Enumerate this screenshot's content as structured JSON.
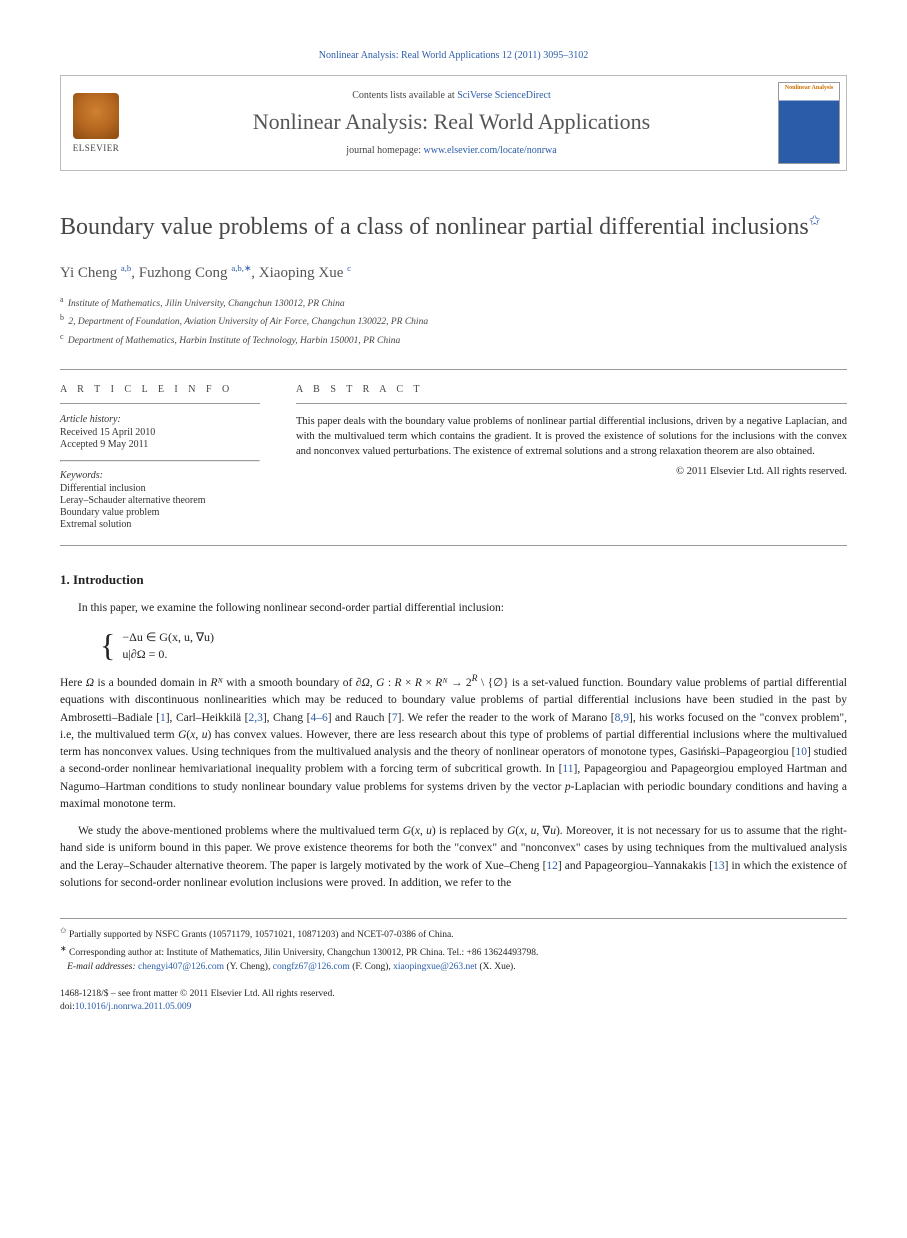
{
  "citation": "Nonlinear Analysis: Real World Applications 12 (2011) 3095–3102",
  "header": {
    "contents_prefix": "Contents lists available at ",
    "contents_link": "SciVerse ScienceDirect",
    "journal_title": "Nonlinear Analysis: Real World Applications",
    "homepage_prefix": "journal homepage: ",
    "homepage_link": "www.elsevier.com/locate/nonrwa",
    "elsevier_label": "ELSEVIER",
    "cover_title": "Nonlinear Analysis"
  },
  "article": {
    "title": "Boundary value problems of a class of nonlinear partial differential inclusions",
    "title_marker": "✩",
    "authors": [
      {
        "name": "Yi Cheng",
        "aff": "a,b"
      },
      {
        "name": "Fuzhong Cong",
        "aff": "a,b,",
        "corr": "∗"
      },
      {
        "name": "Xiaoping Xue",
        "aff": "c"
      }
    ],
    "affiliations": [
      {
        "sup": "a",
        "text": "Institute of Mathematics, Jilin University, Changchun 130012, PR China"
      },
      {
        "sup": "b",
        "text": "2, Department of Foundation, Aviation University of Air Force, Changchun 130022, PR China"
      },
      {
        "sup": "c",
        "text": "Department of Mathematics, Harbin Institute of Technology, Harbin 150001, PR China"
      }
    ]
  },
  "info": {
    "heading": "A R T I C L E   I N F O",
    "history_h": "Article history:",
    "received": "Received 15 April 2010",
    "accepted": "Accepted 9 May 2011",
    "keywords_h": "Keywords:",
    "keywords": [
      "Differential inclusion",
      "Leray–Schauder alternative theorem",
      "Boundary value problem",
      "Extremal solution"
    ]
  },
  "abstract": {
    "heading": "A B S T R A C T",
    "text": "This paper deals with the boundary value problems of nonlinear partial differential inclusions, driven by a negative Laplacian, and with the multivalued term which contains the gradient. It is proved the existence of solutions for the inclusions with the convex and nonconvex valued perturbations. The existence of extremal solutions and a strong relaxation theorem are also obtained.",
    "copyright": "© 2011 Elsevier Ltd. All rights reserved."
  },
  "section1": {
    "heading": "1. Introduction",
    "intro_line": "In this paper, we examine the following nonlinear second-order partial differential inclusion:",
    "eq_line1": "−Δu ∈ G(x, u, ∇u)",
    "eq_line2": "u|∂Ω = 0.",
    "para1": "Here Ω is a bounded domain in Rᴺ with a smooth boundary of ∂Ω, G : R × R × Rᴺ → 2ᴿ \\ {∅} is a set-valued function. Boundary value problems of partial differential equations with discontinuous nonlinearities which may be reduced to boundary value problems of partial differential inclusions have been studied in the past by Ambrosetti–Badiale [1], Carl–Heikkilä [2,3], Chang [4–6] and Rauch [7]. We refer the reader to the work of Marano [8,9], his works focused on the \"convex problem\", i.e, the multivalued term G(x, u) has convex values. However, there are less research about this type of problems of partial differential inclusions where the multivalued term has nonconvex values. Using techniques from the multivalued analysis and the theory of nonlinear operators of monotone types, Gasiński–Papageorgiou [10] studied a second-order nonlinear hemivariational inequality problem with a forcing term of subcritical growth. In [11], Papageorgiou and Papageorgiou employed Hartman and Nagumo–Hartman conditions to study nonlinear boundary value problems for systems driven by the vector p-Laplacian with periodic boundary conditions and having a maximal monotone term.",
    "para2": "We study the above-mentioned problems where the multivalued term G(x, u) is replaced by G(x, u, ∇u). Moreover, it is not necessary for us to assume that the right-hand side is uniform bound in this paper. We prove existence theorems for both the \"convex\" and \"nonconvex\" cases by using techniques from the multivalued analysis and the Leray–Schauder alternative theorem. The paper is largely motivated by the work of Xue–Cheng [12] and Papageorgiou–Yannakakis [13] in which the existence of solutions for second-order nonlinear evolution inclusions were proved. In addition, we refer to the"
  },
  "footnotes": {
    "funding_marker": "✩",
    "funding": "Partially supported by NSFC Grants (10571179, 10571021, 10871203) and NCET-07-0386 of China.",
    "corr_marker": "∗",
    "corr": "Corresponding author at: Institute of Mathematics, Jilin University, Changchun 130012, PR China. Tel.: +86 13624493798.",
    "emails_label": "E-mail addresses: ",
    "emails": [
      {
        "addr": "chengyi407@126.com",
        "who": "(Y. Cheng)"
      },
      {
        "addr": "congfz67@126.com",
        "who": "(F. Cong)"
      },
      {
        "addr": "xiaopingxue@263.net",
        "who": "(X. Xue)"
      }
    ]
  },
  "footer": {
    "line1": "1468-1218/$ – see front matter © 2011 Elsevier Ltd. All rights reserved.",
    "doi_label": "doi:",
    "doi": "10.1016/j.nonrwa.2011.05.009"
  },
  "refs": {
    "r1": "1",
    "r23": "2,3",
    "r46": "4–6",
    "r7": "7",
    "r89": "8,9",
    "r10": "10",
    "r11": "11",
    "r12": "12",
    "r13": "13"
  }
}
